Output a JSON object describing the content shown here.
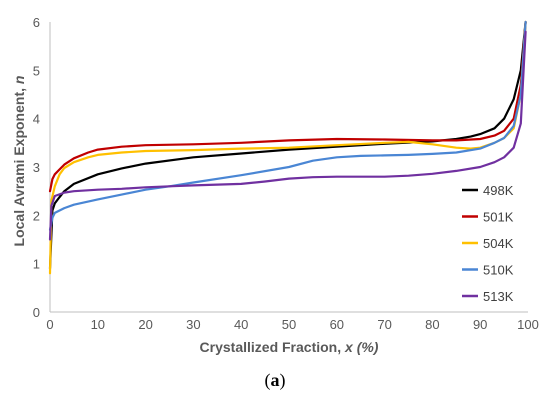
{
  "caption": {
    "open": "(",
    "letter": "a",
    "close": ")"
  },
  "chart_data": {
    "type": "line",
    "xlabel": {
      "text": "Crystallized Fraction, ",
      "italic": "x (%)"
    },
    "ylabel": {
      "text": "Local Avrami Exponent, ",
      "italic": "n"
    },
    "xlim": [
      0,
      100
    ],
    "ylim": [
      0,
      6
    ],
    "xticks": [
      0,
      10,
      20,
      30,
      40,
      50,
      60,
      70,
      80,
      90,
      100
    ],
    "yticks": [
      0,
      1,
      2,
      3,
      4,
      5,
      6
    ],
    "grid": false,
    "legend_position": "right",
    "series": [
      {
        "name": "498K",
        "color": "#000000",
        "points": [
          [
            0,
            0.9
          ],
          [
            0.5,
            2.1
          ],
          [
            1,
            2.25
          ],
          [
            2,
            2.38
          ],
          [
            3,
            2.5
          ],
          [
            5,
            2.65
          ],
          [
            10,
            2.85
          ],
          [
            15,
            2.97
          ],
          [
            20,
            3.07
          ],
          [
            30,
            3.2
          ],
          [
            40,
            3.28
          ],
          [
            50,
            3.36
          ],
          [
            60,
            3.42
          ],
          [
            70,
            3.48
          ],
          [
            80,
            3.53
          ],
          [
            85,
            3.58
          ],
          [
            88,
            3.63
          ],
          [
            90,
            3.68
          ],
          [
            93,
            3.8
          ],
          [
            95,
            4.0
          ],
          [
            97,
            4.4
          ],
          [
            98.5,
            5.0
          ],
          [
            99.5,
            6.0
          ]
        ]
      },
      {
        "name": "501K",
        "color": "#c00000",
        "points": [
          [
            0,
            2.5
          ],
          [
            0.5,
            2.75
          ],
          [
            1,
            2.85
          ],
          [
            2,
            2.95
          ],
          [
            3,
            3.05
          ],
          [
            5,
            3.18
          ],
          [
            8,
            3.3
          ],
          [
            10,
            3.36
          ],
          [
            15,
            3.42
          ],
          [
            20,
            3.45
          ],
          [
            30,
            3.47
          ],
          [
            40,
            3.5
          ],
          [
            50,
            3.55
          ],
          [
            60,
            3.58
          ],
          [
            70,
            3.57
          ],
          [
            80,
            3.55
          ],
          [
            85,
            3.55
          ],
          [
            90,
            3.58
          ],
          [
            93,
            3.65
          ],
          [
            95,
            3.75
          ],
          [
            97,
            4.0
          ],
          [
            98.5,
            4.7
          ],
          [
            99.5,
            6.0
          ]
        ]
      },
      {
        "name": "504K",
        "color": "#ffc000",
        "points": [
          [
            0,
            0.8
          ],
          [
            0.3,
            2.3
          ],
          [
            1,
            2.6
          ],
          [
            2,
            2.85
          ],
          [
            3,
            2.98
          ],
          [
            5,
            3.1
          ],
          [
            8,
            3.2
          ],
          [
            10,
            3.25
          ],
          [
            15,
            3.3
          ],
          [
            20,
            3.33
          ],
          [
            30,
            3.35
          ],
          [
            40,
            3.38
          ],
          [
            50,
            3.4
          ],
          [
            60,
            3.45
          ],
          [
            70,
            3.5
          ],
          [
            75,
            3.52
          ],
          [
            80,
            3.47
          ],
          [
            85,
            3.4
          ],
          [
            88,
            3.38
          ],
          [
            90,
            3.4
          ],
          [
            93,
            3.5
          ],
          [
            95,
            3.6
          ],
          [
            97,
            3.8
          ],
          [
            98.5,
            4.5
          ],
          [
            99.5,
            6.0
          ]
        ]
      },
      {
        "name": "510K",
        "color": "#4a86d4",
        "points": [
          [
            0,
            1.7
          ],
          [
            0.5,
            1.95
          ],
          [
            1,
            2.05
          ],
          [
            3,
            2.15
          ],
          [
            5,
            2.22
          ],
          [
            10,
            2.33
          ],
          [
            15,
            2.43
          ],
          [
            20,
            2.53
          ],
          [
            25,
            2.6
          ],
          [
            30,
            2.68
          ],
          [
            40,
            2.83
          ],
          [
            50,
            3.0
          ],
          [
            55,
            3.13
          ],
          [
            60,
            3.2
          ],
          [
            65,
            3.23
          ],
          [
            70,
            3.24
          ],
          [
            75,
            3.25
          ],
          [
            80,
            3.27
          ],
          [
            85,
            3.3
          ],
          [
            90,
            3.38
          ],
          [
            93,
            3.5
          ],
          [
            95,
            3.6
          ],
          [
            97,
            3.85
          ],
          [
            98.5,
            4.5
          ],
          [
            99.5,
            6.0
          ]
        ]
      },
      {
        "name": "513K",
        "color": "#7030a0",
        "points": [
          [
            0,
            1.5
          ],
          [
            0.3,
            2.2
          ],
          [
            1,
            2.4
          ],
          [
            3,
            2.47
          ],
          [
            5,
            2.5
          ],
          [
            10,
            2.53
          ],
          [
            15,
            2.55
          ],
          [
            20,
            2.58
          ],
          [
            25,
            2.6
          ],
          [
            30,
            2.62
          ],
          [
            40,
            2.65
          ],
          [
            45,
            2.7
          ],
          [
            50,
            2.76
          ],
          [
            55,
            2.79
          ],
          [
            60,
            2.8
          ],
          [
            70,
            2.8
          ],
          [
            75,
            2.82
          ],
          [
            80,
            2.86
          ],
          [
            85,
            2.92
          ],
          [
            90,
            3.0
          ],
          [
            93,
            3.1
          ],
          [
            95,
            3.2
          ],
          [
            97,
            3.4
          ],
          [
            98.5,
            3.9
          ],
          [
            99.5,
            5.8
          ]
        ]
      }
    ]
  }
}
